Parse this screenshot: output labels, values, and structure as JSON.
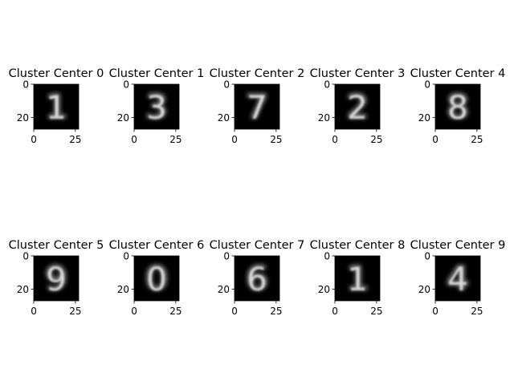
{
  "chart_data": [
    {
      "type": "image",
      "title": "Cluster Center 0",
      "digit": "1",
      "xticks": [
        "0",
        "25"
      ],
      "yticks": [
        "0",
        "20"
      ],
      "xlim": [
        0,
        27
      ],
      "ylim": [
        27,
        0
      ]
    },
    {
      "type": "image",
      "title": "Cluster Center 1",
      "digit": "3",
      "xticks": [
        "0",
        "25"
      ],
      "yticks": [
        "0",
        "20"
      ],
      "xlim": [
        0,
        27
      ],
      "ylim": [
        27,
        0
      ]
    },
    {
      "type": "image",
      "title": "Cluster Center 2",
      "digit": "7",
      "xticks": [
        "0",
        "25"
      ],
      "yticks": [
        "0",
        "20"
      ],
      "xlim": [
        0,
        27
      ],
      "ylim": [
        27,
        0
      ]
    },
    {
      "type": "image",
      "title": "Cluster Center 3",
      "digit": "2",
      "xticks": [
        "0",
        "25"
      ],
      "yticks": [
        "0",
        "20"
      ],
      "xlim": [
        0,
        27
      ],
      "ylim": [
        27,
        0
      ]
    },
    {
      "type": "image",
      "title": "Cluster Center 4",
      "digit": "8",
      "xticks": [
        "0",
        "25"
      ],
      "yticks": [
        "0",
        "20"
      ],
      "xlim": [
        0,
        27
      ],
      "ylim": [
        27,
        0
      ]
    },
    {
      "type": "image",
      "title": "Cluster Center 5",
      "digit": "9",
      "xticks": [
        "0",
        "25"
      ],
      "yticks": [
        "0",
        "20"
      ],
      "xlim": [
        0,
        27
      ],
      "ylim": [
        27,
        0
      ]
    },
    {
      "type": "image",
      "title": "Cluster Center 6",
      "digit": "0",
      "xticks": [
        "0",
        "25"
      ],
      "yticks": [
        "0",
        "20"
      ],
      "xlim": [
        0,
        27
      ],
      "ylim": [
        27,
        0
      ]
    },
    {
      "type": "image",
      "title": "Cluster Center 7",
      "digit": "6",
      "xticks": [
        "0",
        "25"
      ],
      "yticks": [
        "0",
        "20"
      ],
      "xlim": [
        0,
        27
      ],
      "ylim": [
        27,
        0
      ]
    },
    {
      "type": "image",
      "title": "Cluster Center 8",
      "digit": "1",
      "xticks": [
        "0",
        "25"
      ],
      "yticks": [
        "0",
        "20"
      ],
      "xlim": [
        0,
        27
      ],
      "ylim": [
        27,
        0
      ]
    },
    {
      "type": "image",
      "title": "Cluster Center 9",
      "digit": "4",
      "xticks": [
        "0",
        "25"
      ],
      "yticks": [
        "0",
        "20"
      ],
      "xlim": [
        0,
        27
      ],
      "ylim": [
        27,
        0
      ]
    }
  ],
  "colors": {
    "image_bg": "#000000",
    "digit_fg": "#e6e6e6",
    "axis": "#000000"
  }
}
